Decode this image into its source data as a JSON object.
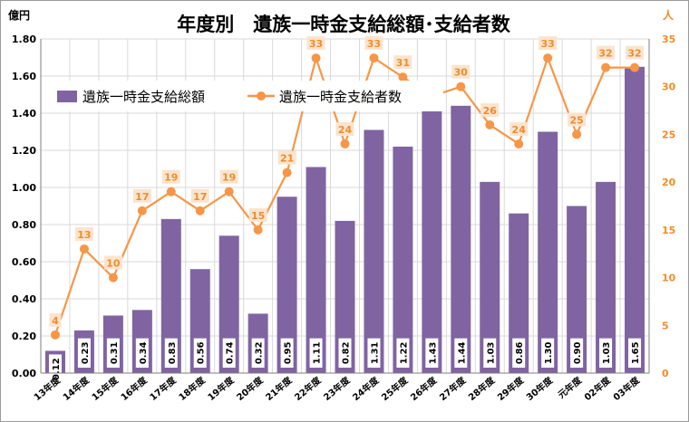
{
  "colors": {
    "bar": "#8064a2",
    "line": "#f79646",
    "grid": "#d9d9d9",
    "point_label_bg": "#fbe4cf",
    "right_axis_text": "#f28c28"
  },
  "chart_data": {
    "type": "bar",
    "title": "年度別　遺族一時金支給総額･支給者数",
    "left_axis_unit": "億円",
    "right_axis_unit": "人",
    "categories": [
      "13年度",
      "14年度",
      "15年度",
      "16年度",
      "17年度",
      "18年度",
      "19年度",
      "20年度",
      "21年度",
      "22年度",
      "23年度",
      "24年度",
      "25年度",
      "26年度",
      "27年度",
      "28年度",
      "29年度",
      "30年度",
      "元年度",
      "02年度",
      "03年度"
    ],
    "series": [
      {
        "name": "遺族一時金支給総額",
        "type": "bar",
        "axis": "left",
        "values": [
          0.12,
          0.23,
          0.31,
          0.34,
          0.83,
          0.56,
          0.74,
          0.32,
          0.95,
          1.11,
          0.82,
          1.31,
          1.22,
          1.43,
          1.44,
          1.03,
          0.86,
          1.3,
          0.9,
          1.03,
          1.65
        ],
        "labels": [
          "0.12",
          "0.23",
          "0.31",
          "0.34",
          "0.83",
          "0.56",
          "0.74",
          "0.32",
          "0.95",
          "1.11",
          "0.82",
          "1.31",
          "1.22",
          "1.43",
          "1.44",
          "1.03",
          "0.86",
          "1.30",
          "0.90",
          "1.03",
          "1.65"
        ]
      },
      {
        "name": "遺族一時金支給者数",
        "type": "line",
        "axis": "right",
        "values": [
          4,
          13,
          10,
          17,
          19,
          17,
          19,
          15,
          21,
          33,
          24,
          33,
          31,
          29,
          30,
          26,
          24,
          33,
          25,
          32,
          32
        ],
        "labels": [
          "4",
          "13",
          "10",
          "17",
          "19",
          "17",
          "19",
          "15",
          "21",
          "33",
          "24",
          "33",
          "31",
          "",
          "30",
          "26",
          "24",
          "33",
          "25",
          "32",
          "32"
        ]
      }
    ],
    "ylim_left": [
      0,
      1.8
    ],
    "ylim_right": [
      0,
      35
    ],
    "yticks_left": [
      "0.00",
      "0.20",
      "0.40",
      "0.60",
      "0.80",
      "1.00",
      "1.20",
      "1.40",
      "1.60",
      "1.80"
    ],
    "yticks_right": [
      "0",
      "5",
      "10",
      "15",
      "20",
      "25",
      "30",
      "35"
    ],
    "grid": true,
    "legend_position": "top-left"
  }
}
